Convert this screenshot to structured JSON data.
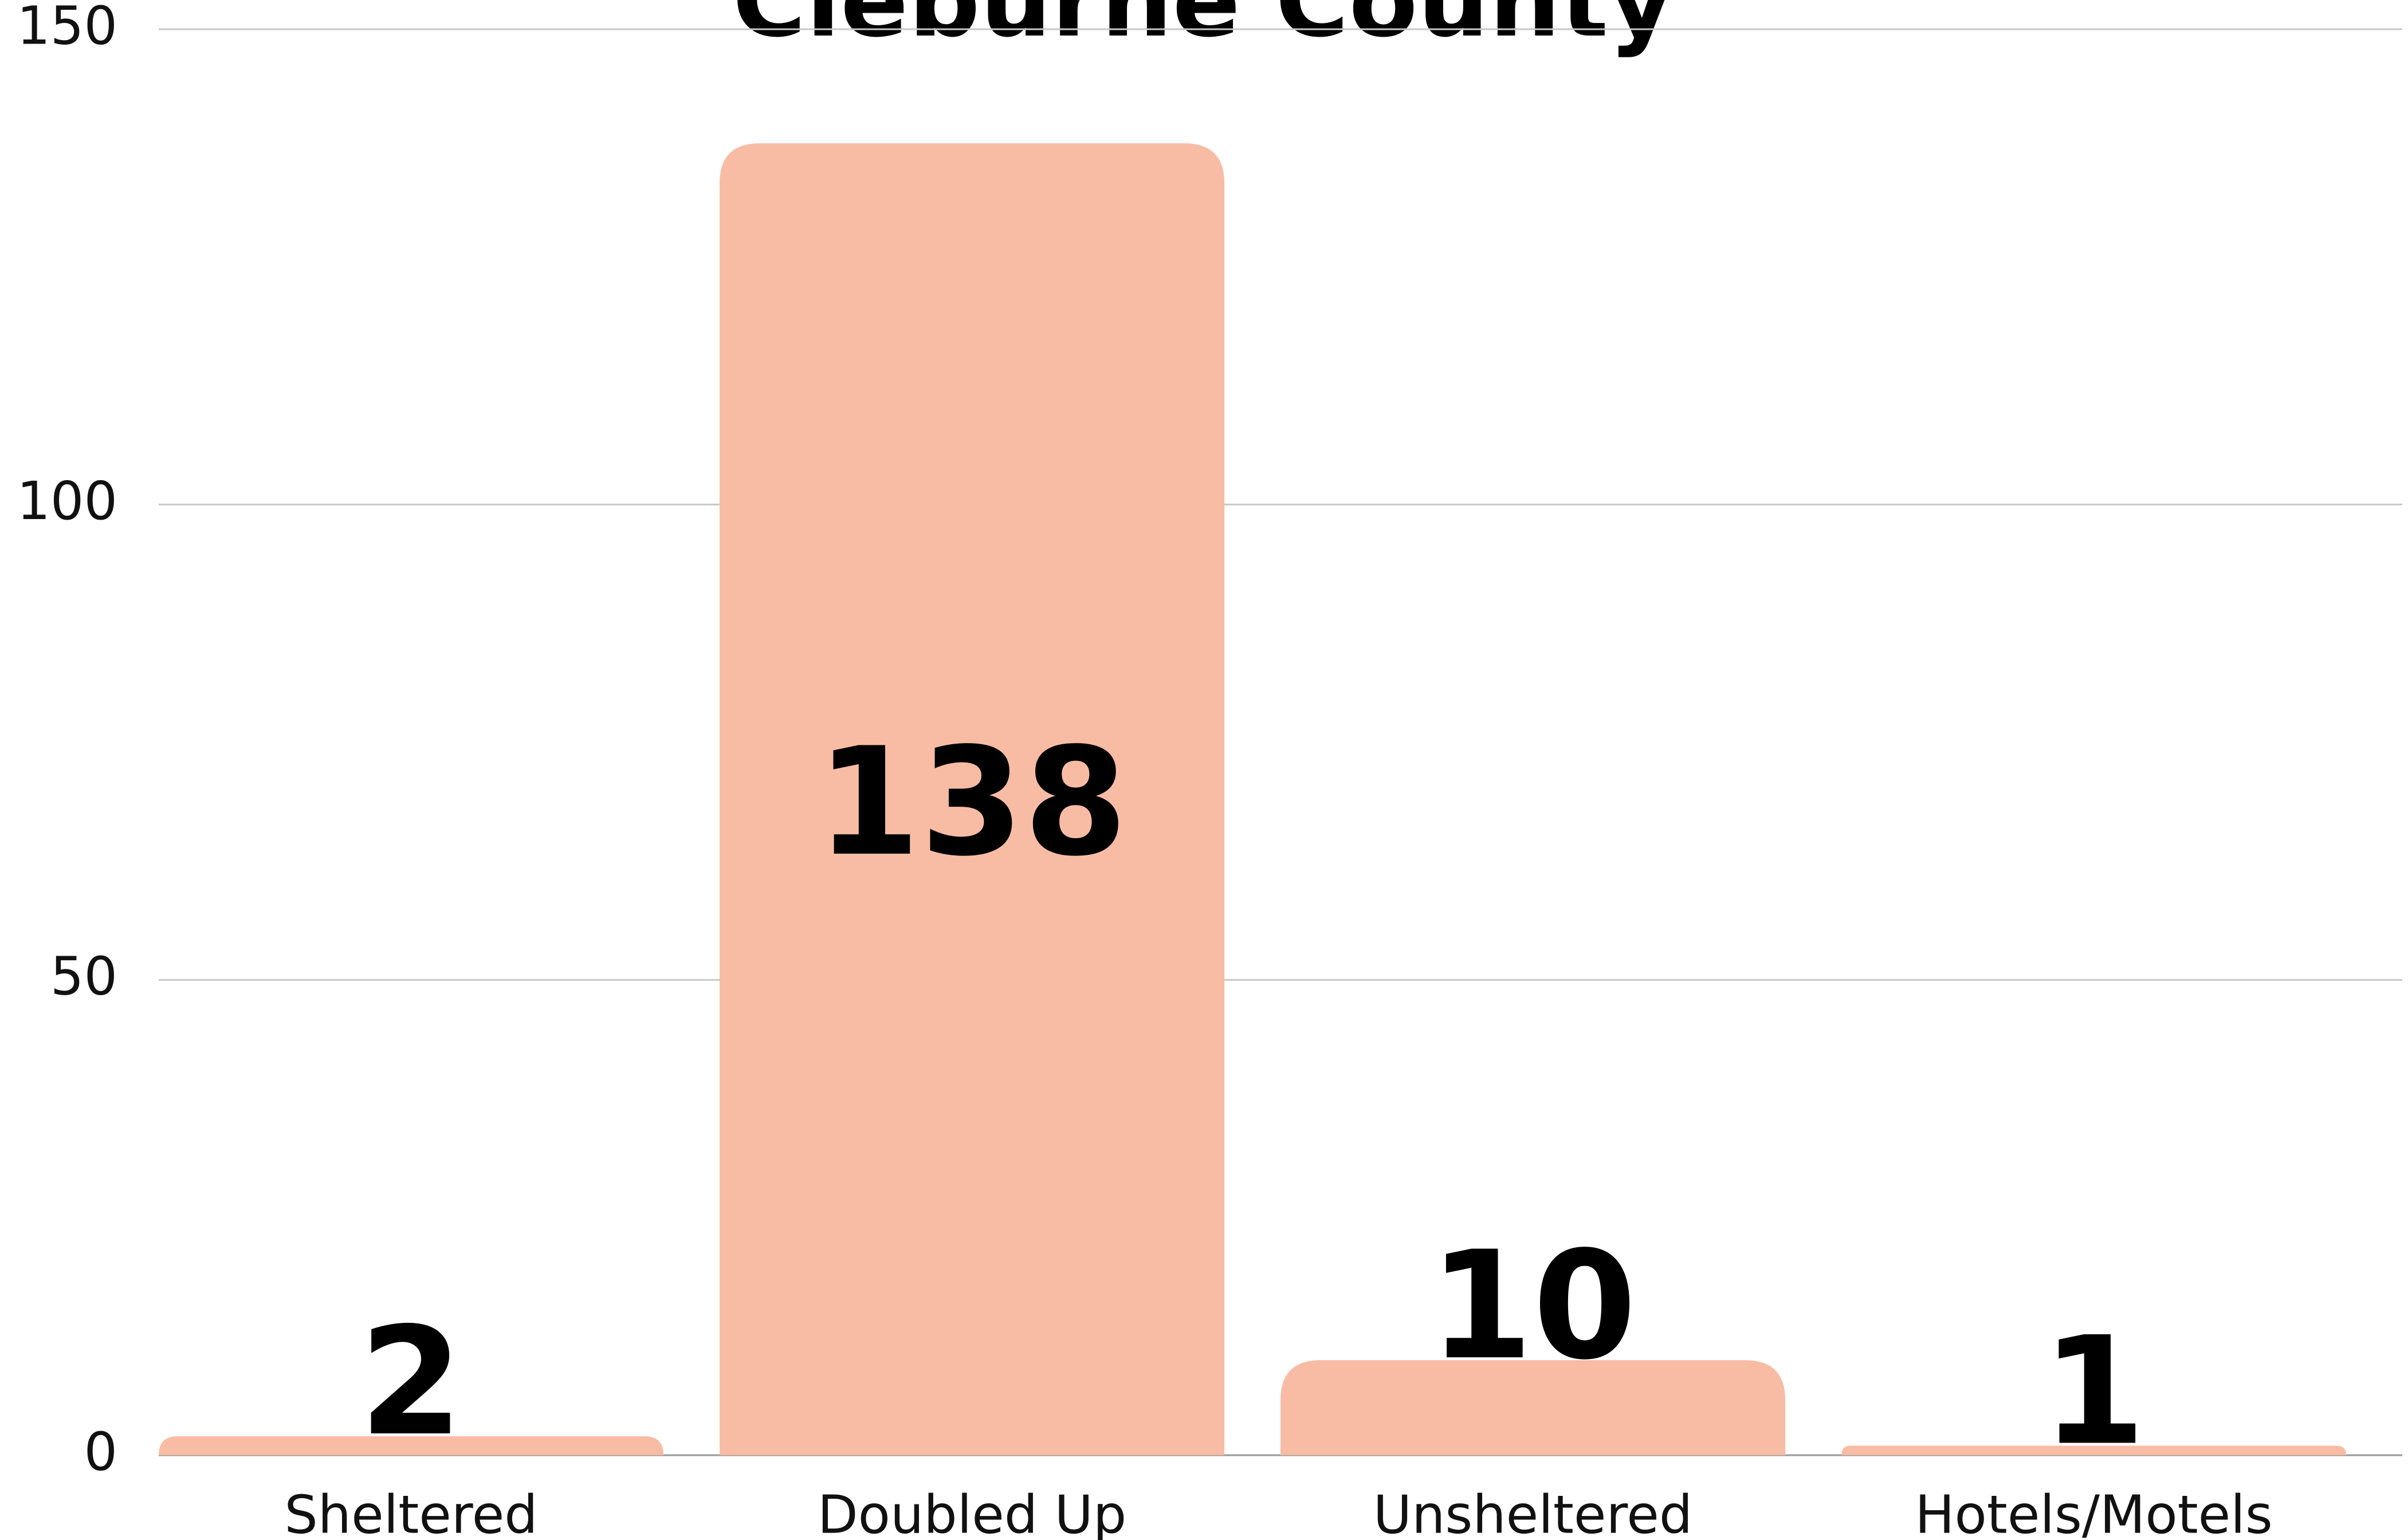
{
  "chart_data": {
    "type": "bar",
    "title": "Cleburne County",
    "categories": [
      "Sheltered",
      "Doubled Up",
      "Unsheltered",
      "Hotels/Motels"
    ],
    "values": [
      2,
      138,
      10,
      1
    ],
    "color": "#f8bca5",
    "ylim": [
      0,
      150
    ],
    "yticks": [
      0,
      50,
      100,
      150
    ],
    "grid": true
  }
}
